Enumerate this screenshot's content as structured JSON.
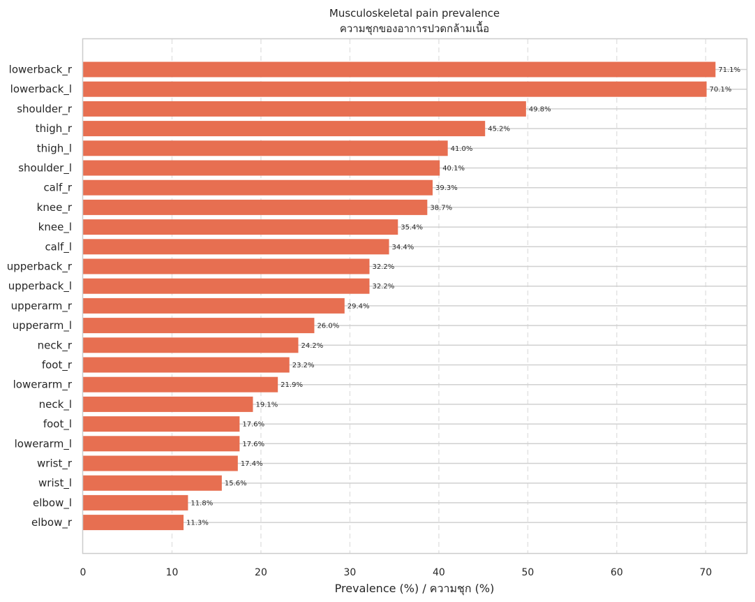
{
  "chart_data": {
    "type": "bar",
    "orientation": "horizontal",
    "title": "Musculoskeletal pain prevalence",
    "subtitle": "ความชุกของอาการปวดกล้ามเนื้อ",
    "xlabel": "Prevalence (%) / ความชุก (%)",
    "ylabel": "",
    "xlim": [
      0,
      74.6
    ],
    "xticks": [
      0,
      10,
      20,
      30,
      40,
      50,
      60,
      70
    ],
    "grid": true,
    "bar_color": "#e76f51",
    "categories": [
      "lowerback_r",
      "lowerback_l",
      "shoulder_r",
      "thigh_r",
      "thigh_l",
      "shoulder_l",
      "calf_r",
      "knee_r",
      "knee_l",
      "calf_l",
      "upperback_r",
      "upperback_l",
      "upperarm_r",
      "upperarm_l",
      "neck_r",
      "foot_r",
      "lowerarm_r",
      "neck_l",
      "foot_l",
      "lowerarm_l",
      "wrist_r",
      "wrist_l",
      "elbow_l",
      "elbow_r"
    ],
    "values": [
      71.1,
      70.1,
      49.8,
      45.2,
      41.0,
      40.1,
      39.3,
      38.7,
      35.4,
      34.4,
      32.2,
      32.2,
      29.4,
      26.0,
      24.2,
      23.2,
      21.9,
      19.1,
      17.6,
      17.6,
      17.4,
      15.6,
      11.8,
      11.3
    ],
    "data_labels": [
      "71.1%",
      "70.1%",
      "49.8%",
      "45.2%",
      "41.0%",
      "40.1%",
      "39.3%",
      "38.7%",
      "35.4%",
      "34.4%",
      "32.2%",
      "32.2%",
      "29.4%",
      "26.0%",
      "24.2%",
      "23.2%",
      "21.9%",
      "19.1%",
      "17.6%",
      "17.6%",
      "17.4%",
      "15.6%",
      "11.8%",
      "11.3%"
    ]
  }
}
